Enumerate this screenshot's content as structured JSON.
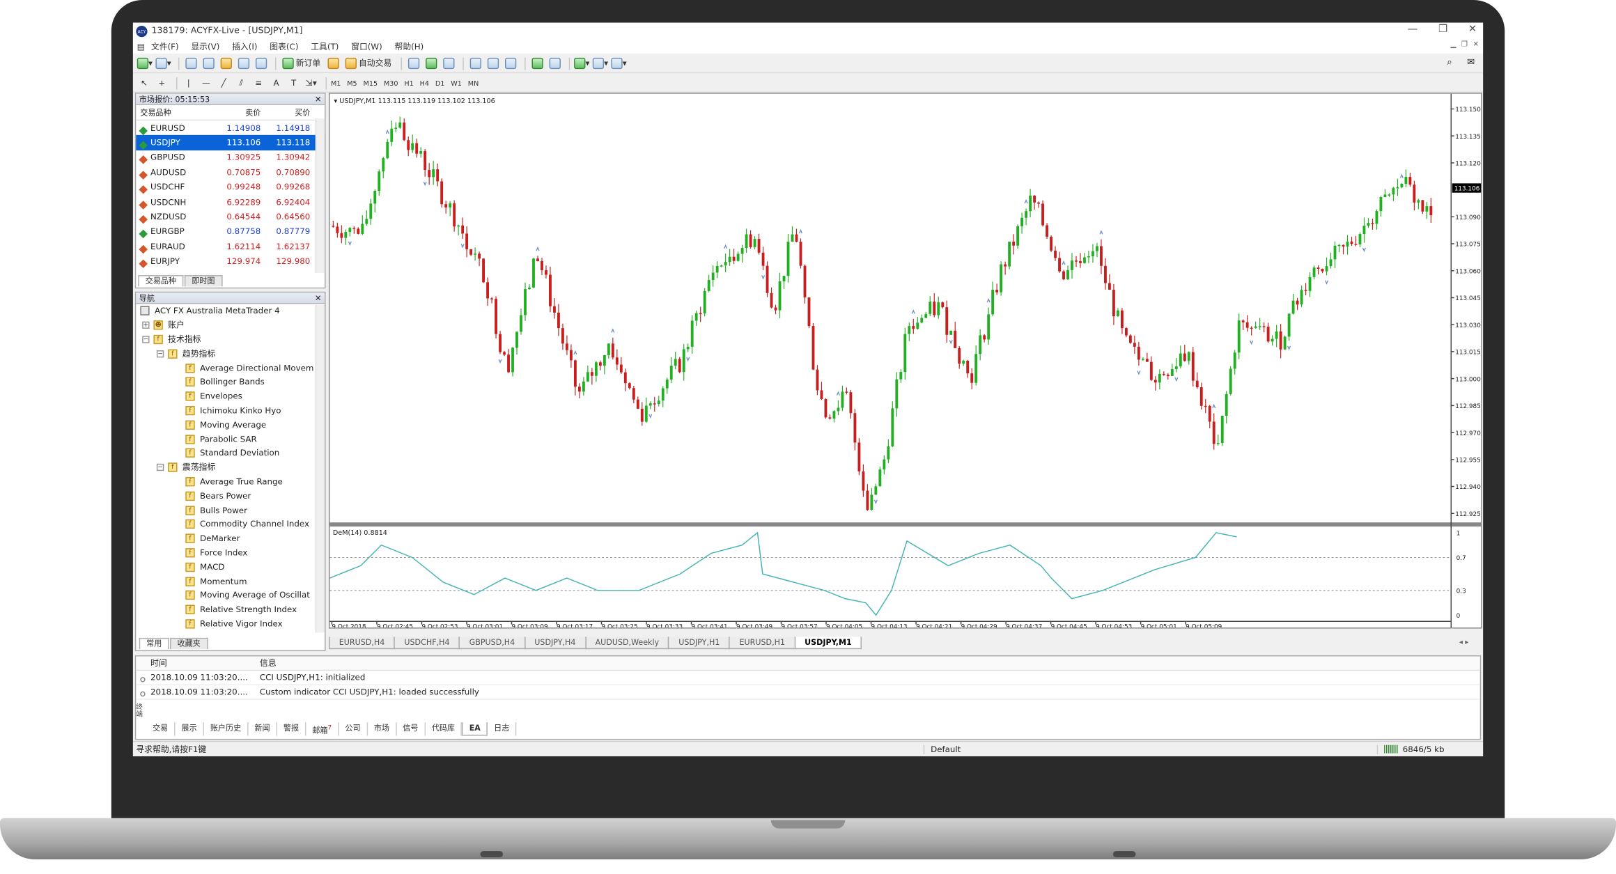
{
  "window": {
    "title": "138179: ACYFX-Live - [USDJPY,M1]",
    "logo_text": "ACY"
  },
  "menu": [
    "文件(F)",
    "显示(V)",
    "插入(I)",
    "图表(C)",
    "工具(T)",
    "窗口(W)",
    "帮助(H)"
  ],
  "toolbar": {
    "new_order": "新订单",
    "auto_trade": "自动交易",
    "timeframes": [
      "M1",
      "M5",
      "M15",
      "M30",
      "H1",
      "H4",
      "D1",
      "W1",
      "MN"
    ]
  },
  "market_watch": {
    "title": "市场报价: 05:15:53",
    "col_symbol": "交易品种",
    "col_bid": "卖价",
    "col_ask": "买价",
    "rows": [
      {
        "symbol": "EURUSD",
        "bid": "1.14908",
        "ask": "1.14918",
        "dir": "up"
      },
      {
        "symbol": "USDJPY",
        "bid": "113.106",
        "ask": "113.118",
        "dir": "up"
      },
      {
        "symbol": "GBPUSD",
        "bid": "1.30925",
        "ask": "1.30942",
        "dir": "down"
      },
      {
        "symbol": "AUDUSD",
        "bid": "0.70875",
        "ask": "0.70890",
        "dir": "down"
      },
      {
        "symbol": "USDCHF",
        "bid": "0.99248",
        "ask": "0.99268",
        "dir": "down"
      },
      {
        "symbol": "USDCNH",
        "bid": "6.92289",
        "ask": "6.92404",
        "dir": "down"
      },
      {
        "symbol": "NZDUSD",
        "bid": "0.64544",
        "ask": "0.64560",
        "dir": "down"
      },
      {
        "symbol": "EURGBP",
        "bid": "0.87758",
        "ask": "0.87779",
        "dir": "up"
      },
      {
        "symbol": "EURAUD",
        "bid": "1.62114",
        "ask": "1.62137",
        "dir": "down"
      },
      {
        "symbol": "EURJPY",
        "bid": "129.974",
        "ask": "129.980",
        "dir": "down"
      }
    ],
    "tab_symbols": "交易品种",
    "tab_tick": "即时图"
  },
  "navigator": {
    "title": "导航",
    "root": "ACY FX Australia MetaTrader 4",
    "accounts": "账户",
    "indicators": "技术指标",
    "trend_group": "趋势指标",
    "trend_items": [
      "Average Directional Movem",
      "Bollinger Bands",
      "Envelopes",
      "Ichimoku Kinko Hyo",
      "Moving Average",
      "Parabolic SAR",
      "Standard Deviation"
    ],
    "osc_group": "震荡指标",
    "osc_items": [
      "Average True Range",
      "Bears Power",
      "Bulls Power",
      "Commodity Channel Index",
      "DeMarker",
      "Force Index",
      "MACD",
      "Momentum",
      "Moving Average of Oscillat",
      "Relative Strength Index",
      "Relative Vigor Index"
    ],
    "tab_common": "常用",
    "tab_fav": "收藏夹"
  },
  "chart": {
    "header": "USDJPY,M1  113.115 113.119 113.102 113.106",
    "price_labels": [
      "113.150",
      "113.135",
      "113.120",
      "113.090",
      "113.075",
      "113.060",
      "113.045",
      "113.030",
      "113.015",
      "113.000",
      "112.985",
      "112.970",
      "112.955",
      "112.940",
      "112.925"
    ],
    "current_price": "113.106",
    "indicator_label": "DeM(14) 0.8814",
    "indicator_levels": [
      "1",
      "0.7",
      "0.3",
      "0"
    ],
    "time_labels": [
      "9 Oct 2018",
      "9 Oct 02:45",
      "9 Oct 02:53",
      "9 Oct 03:01",
      "9 Oct 03:09",
      "9 Oct 03:17",
      "9 Oct 03:25",
      "9 Oct 03:33",
      "9 Oct 03:41",
      "9 Oct 03:49",
      "9 Oct 03:57",
      "9 Oct 04:05",
      "9 Oct 04:13",
      "9 Oct 04:21",
      "9 Oct 04:29",
      "9 Oct 04:37",
      "9 Oct 04:45",
      "9 Oct 04:53",
      "9 Oct 05:01",
      "9 Oct 05:09"
    ],
    "colors": {
      "bull": "#22b022",
      "bear": "#c81e1e",
      "fractal": "#6b8fc9",
      "dem": "#46b5b5"
    }
  },
  "chart_tabs": [
    "EURUSD,H4",
    "USDCHF,H4",
    "GBPUSD,H4",
    "USDJPY,H4",
    "AUDUSD,Weekly",
    "USDJPY,H1",
    "EURUSD,H1",
    "USDJPY,M1"
  ],
  "terminal": {
    "col_time": "时间",
    "col_msg": "信息",
    "rows": [
      {
        "time": "2018.10.09 11:03:20....",
        "msg": "CCI USDJPY,H1: initialized"
      },
      {
        "time": "2018.10.09 11:03:20....",
        "msg": "Custom indicator CCI USDJPY,H1: loaded successfully"
      }
    ],
    "side_label": "终端",
    "tabs": [
      "交易",
      "展示",
      "账户历史",
      "新闻",
      "警报",
      "邮箱",
      "公司",
      "市场",
      "信号",
      "代码库",
      "EA",
      "日志"
    ],
    "mail_badge": "7"
  },
  "status": {
    "help": "寻求帮助,请按F1键",
    "profile": "Default",
    "traffic": "6846/5 kb"
  }
}
